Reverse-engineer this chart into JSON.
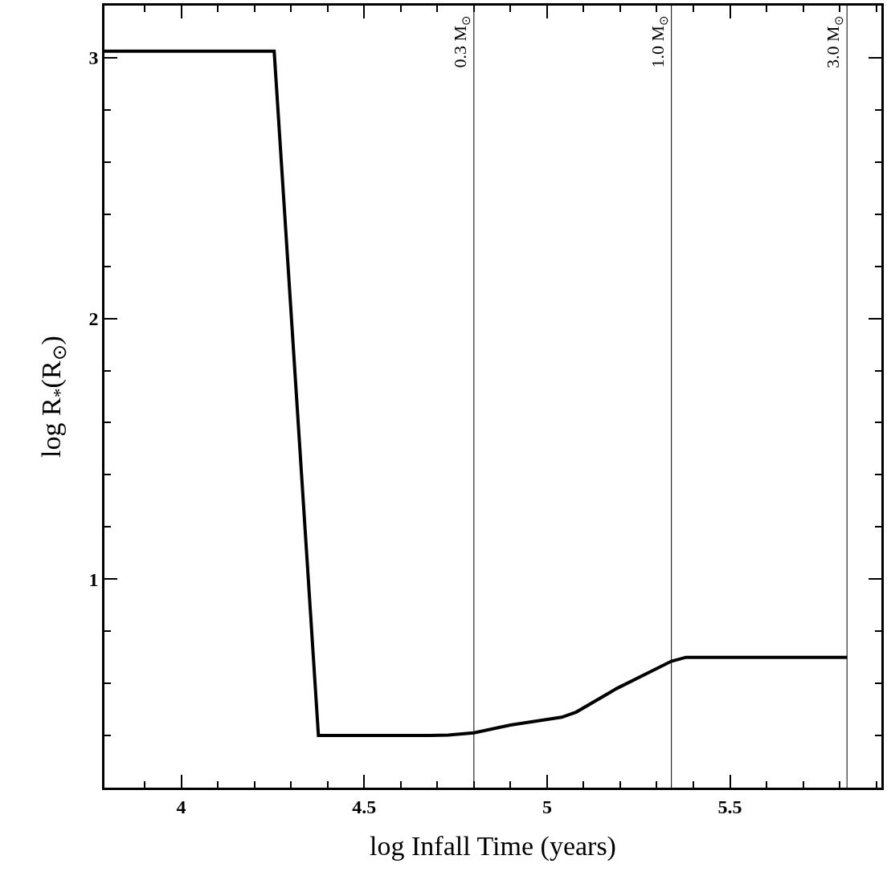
{
  "chart_data": {
    "type": "line",
    "xlabel": "log Infall Time (years)",
    "ylabel": "log R$_{*}$(R$_{⊙}$)",
    "x": [
      3.79,
      4.254,
      4.375,
      4.68,
      4.73,
      4.8,
      4.9,
      5.04,
      5.08,
      5.19,
      5.34,
      5.38,
      5.82
    ],
    "series": [
      {
        "color": "#000000",
        "values": [
          3.025,
          3.025,
          0.4,
          0.4,
          0.402,
          0.41,
          0.44,
          0.47,
          0.49,
          0.58,
          0.685,
          0.7,
          0.7
        ]
      }
    ],
    "xlim": [
      3.79,
      5.914
    ],
    "ylim": [
      0.2,
      3.2
    ],
    "xticks": [
      {
        "value": 3.9,
        "label": null
      },
      4,
      {
        "value": 4.1,
        "label": null
      },
      {
        "value": 4.2,
        "label": null
      },
      {
        "value": 4.3,
        "label": null
      },
      {
        "value": 4.4,
        "label": null
      },
      4.5,
      {
        "value": 4.6,
        "label": null
      },
      {
        "value": 4.7,
        "label": null
      },
      {
        "value": 4.8,
        "label": null
      },
      {
        "value": 4.9,
        "label": null
      },
      5,
      {
        "value": 5.1,
        "label": null
      },
      {
        "value": 5.2,
        "label": null
      },
      {
        "value": 5.3,
        "label": null
      },
      {
        "value": 5.4,
        "label": null
      },
      5.5,
      {
        "value": 5.6,
        "label": null
      },
      {
        "value": 5.7,
        "label": null
      },
      {
        "value": 5.8,
        "label": null
      },
      {
        "value": 5.9,
        "label": null
      }
    ],
    "yticks": [
      {
        "value": 0.4,
        "label": null
      },
      {
        "value": 0.6,
        "label": null
      },
      {
        "value": 0.8,
        "label": null
      },
      1,
      {
        "value": 1.2,
        "label": null
      },
      {
        "value": 1.4,
        "label": null
      },
      {
        "value": 1.6,
        "label": null
      },
      {
        "value": 1.8,
        "label": null
      },
      2,
      {
        "value": 2.2,
        "label": null
      },
      {
        "value": 2.4,
        "label": null
      },
      {
        "value": 2.6,
        "label": null
      },
      {
        "value": 2.8,
        "label": null
      },
      3
    ],
    "ref_lines": [
      {
        "axis": "x",
        "value": 4.8,
        "label": "0.3 M$_{⊙}$",
        "color": "#000000"
      },
      {
        "axis": "x",
        "value": 5.34,
        "label": "1.0 M$_{⊙}$",
        "color": "#000000"
      },
      {
        "axis": "x",
        "value": 5.82,
        "label": "3.0 M$_{⊙}$",
        "color": "#000000"
      }
    ],
    "marker": "none",
    "line_style": "solid"
  }
}
